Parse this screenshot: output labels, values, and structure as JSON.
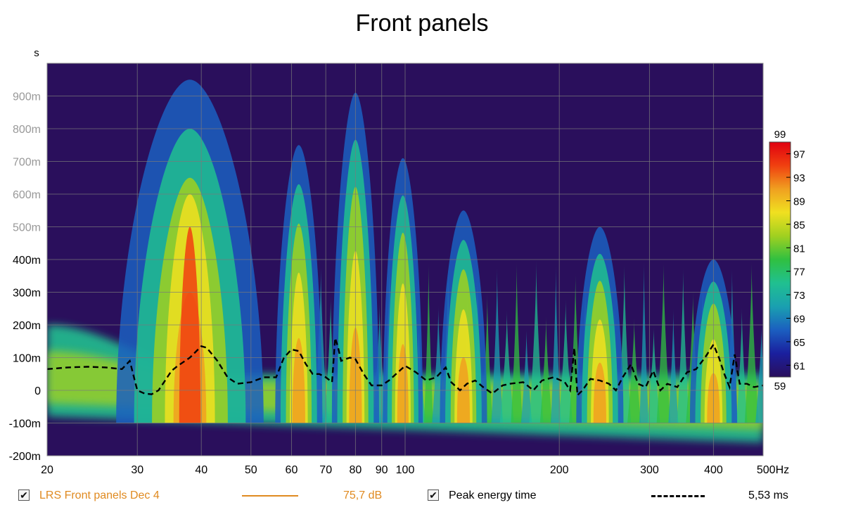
{
  "title": "Front panels",
  "colors": {
    "background": "#2a0f5c",
    "grid": "#7a7a7a",
    "series_orange": "#e08a20",
    "peak_line": "#000000"
  },
  "chart_data": {
    "type": "heatmap",
    "title": "Front panels",
    "xscale": "log",
    "xlim": [
      20,
      500
    ],
    "ylim": [
      -0.2,
      1.0
    ],
    "yunit": "s",
    "xunit": "Hz",
    "grid": true,
    "xticks": [
      {
        "v": 20,
        "label": "20"
      },
      {
        "v": 30,
        "label": "30"
      },
      {
        "v": 40,
        "label": "40"
      },
      {
        "v": 50,
        "label": "50"
      },
      {
        "v": 60,
        "label": "60"
      },
      {
        "v": 70,
        "label": "70"
      },
      {
        "v": 80,
        "label": "80"
      },
      {
        "v": 90,
        "label": "90"
      },
      {
        "v": 100,
        "label": "100"
      },
      {
        "v": 200,
        "label": "200"
      },
      {
        "v": 300,
        "label": "300"
      },
      {
        "v": 400,
        "label": "400"
      },
      {
        "v": 500,
        "label": "500Hz"
      }
    ],
    "yticks": [
      {
        "v": 0.9,
        "label": "900m"
      },
      {
        "v": 0.8,
        "label": "800m"
      },
      {
        "v": 0.7,
        "label": "700m"
      },
      {
        "v": 0.6,
        "label": "600m"
      },
      {
        "v": 0.5,
        "label": "500m"
      },
      {
        "v": 0.4,
        "label": "400m"
      },
      {
        "v": 0.3,
        "label": "300m"
      },
      {
        "v": 0.2,
        "label": "200m"
      },
      {
        "v": 0.1,
        "label": "100m"
      },
      {
        "v": 0.0,
        "label": "0"
      },
      {
        "v": -0.1,
        "label": "-100m"
      },
      {
        "v": -0.2,
        "label": "-200m"
      }
    ],
    "ylabel": "s",
    "colorbar": {
      "min": 59,
      "max": 99,
      "min_label": "59",
      "max_label": "99",
      "ticks": [
        {
          "v": 97,
          "label": "97"
        },
        {
          "v": 93,
          "label": "93"
        },
        {
          "v": 89,
          "label": "89"
        },
        {
          "v": 85,
          "label": "85"
        },
        {
          "v": 81,
          "label": "81"
        },
        {
          "v": 77,
          "label": "77"
        },
        {
          "v": 73,
          "label": "73"
        },
        {
          "v": 69,
          "label": "69"
        },
        {
          "v": 65,
          "label": "65"
        },
        {
          "v": 61,
          "label": "61"
        }
      ],
      "stops": [
        "#2a0f5c",
        "#1a1f9e",
        "#1b5fc0",
        "#1aa0b0",
        "#20c090",
        "#30c040",
        "#a0d020",
        "#f0e020",
        "#f0a020",
        "#f04010",
        "#e00010"
      ]
    },
    "decay_ridges": [
      {
        "f": 38,
        "height": 1.0,
        "width": 0.1,
        "strength": 1.0
      },
      {
        "f": 62,
        "height": 0.8,
        "width": 0.03,
        "strength": 0.75
      },
      {
        "f": 80,
        "height": 0.96,
        "width": 0.03,
        "strength": 0.72
      },
      {
        "f": 99,
        "height": 0.76,
        "width": 0.025,
        "strength": 0.72
      },
      {
        "f": 130,
        "height": 0.6,
        "width": 0.03,
        "strength": 0.72
      },
      {
        "f": 240,
        "height": 0.55,
        "width": 0.03,
        "strength": 0.7
      },
      {
        "f": 400,
        "height": 0.45,
        "width": 0.03,
        "strength": 0.65
      }
    ],
    "series": [
      {
        "name": "Peak energy time",
        "style": "dashed",
        "points": [
          [
            20,
            0.065
          ],
          [
            22,
            0.07
          ],
          [
            24,
            0.072
          ],
          [
            26,
            0.07
          ],
          [
            28,
            0.065
          ],
          [
            29,
            0.09
          ],
          [
            30,
            0.0
          ],
          [
            31,
            -0.01
          ],
          [
            32,
            -0.012
          ],
          [
            33,
            0.0
          ],
          [
            34,
            0.03
          ],
          [
            35,
            0.06
          ],
          [
            36,
            0.075
          ],
          [
            38,
            0.1
          ],
          [
            40,
            0.135
          ],
          [
            41,
            0.13
          ],
          [
            43,
            0.09
          ],
          [
            45,
            0.04
          ],
          [
            47,
            0.02
          ],
          [
            50,
            0.025
          ],
          [
            53,
            0.04
          ],
          [
            56,
            0.04
          ],
          [
            58,
            0.1
          ],
          [
            60,
            0.125
          ],
          [
            62,
            0.12
          ],
          [
            64,
            0.08
          ],
          [
            66,
            0.05
          ],
          [
            68,
            0.05
          ],
          [
            70,
            0.04
          ],
          [
            72,
            0.025
          ],
          [
            73,
            0.16
          ],
          [
            74,
            0.13
          ],
          [
            75,
            0.09
          ],
          [
            78,
            0.1
          ],
          [
            80,
            0.095
          ],
          [
            83,
            0.05
          ],
          [
            86,
            0.015
          ],
          [
            90,
            0.015
          ],
          [
            93,
            0.03
          ],
          [
            96,
            0.05
          ],
          [
            100,
            0.075
          ],
          [
            105,
            0.055
          ],
          [
            110,
            0.03
          ],
          [
            115,
            0.04
          ],
          [
            120,
            0.07
          ],
          [
            123,
            0.025
          ],
          [
            128,
            0.0
          ],
          [
            132,
            0.02
          ],
          [
            137,
            0.03
          ],
          [
            142,
            0.01
          ],
          [
            148,
            -0.01
          ],
          [
            155,
            0.015
          ],
          [
            160,
            0.02
          ],
          [
            170,
            0.025
          ],
          [
            178,
            0.0
          ],
          [
            185,
            0.03
          ],
          [
            195,
            0.04
          ],
          [
            205,
            0.025
          ],
          [
            210,
            0.0
          ],
          [
            214,
            0.13
          ],
          [
            217,
            -0.015
          ],
          [
            222,
            0.0
          ],
          [
            230,
            0.035
          ],
          [
            240,
            0.03
          ],
          [
            250,
            0.02
          ],
          [
            258,
            0.0
          ],
          [
            266,
            0.04
          ],
          [
            276,
            0.08
          ],
          [
            285,
            0.02
          ],
          [
            295,
            0.01
          ],
          [
            305,
            0.06
          ],
          [
            315,
            0.0
          ],
          [
            325,
            0.02
          ],
          [
            340,
            0.01
          ],
          [
            355,
            0.055
          ],
          [
            370,
            0.065
          ],
          [
            385,
            0.1
          ],
          [
            400,
            0.14
          ],
          [
            410,
            0.1
          ],
          [
            420,
            0.05
          ],
          [
            430,
            0.01
          ],
          [
            440,
            0.11
          ],
          [
            450,
            0.02
          ],
          [
            465,
            0.02
          ],
          [
            480,
            0.01
          ],
          [
            500,
            0.015
          ]
        ]
      }
    ]
  },
  "legend": {
    "items": [
      {
        "label": "LRS Front panels Dec 4",
        "value": "75,7 dB",
        "checked": true,
        "color": "#e08a20",
        "line_style": "solid"
      },
      {
        "label": "Peak energy time",
        "value": "5,53 ms",
        "checked": true,
        "color": "#000000",
        "line_style": "dashed"
      }
    ]
  }
}
